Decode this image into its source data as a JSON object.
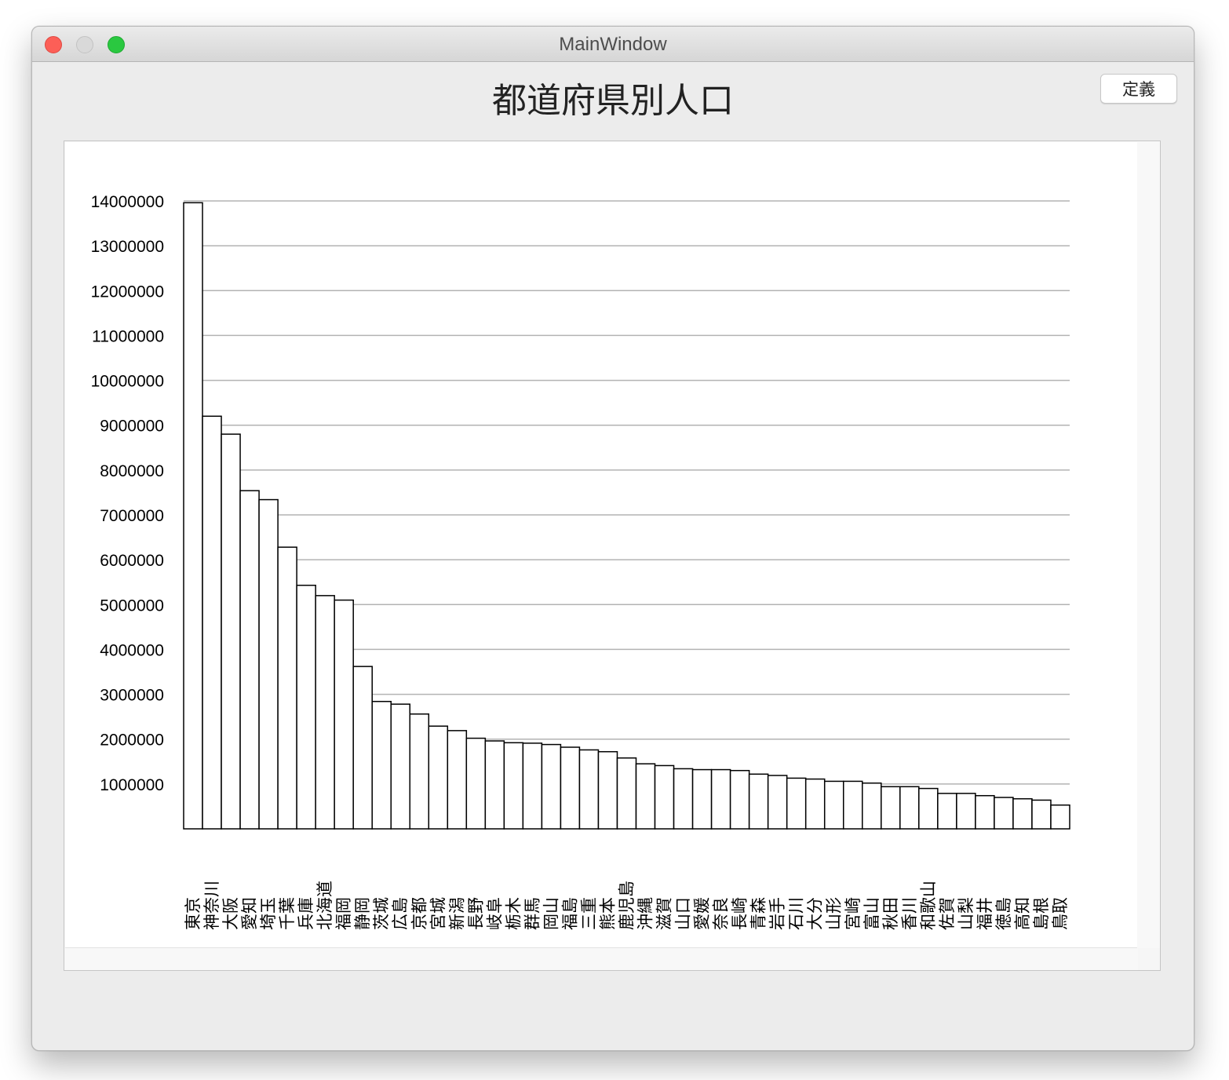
{
  "window": {
    "title": "MainWindow"
  },
  "toolbar": {
    "define_label": "定義"
  },
  "chart_data": {
    "type": "bar",
    "title": "都道府県別人口",
    "xlabel": "",
    "ylabel": "",
    "ylim": [
      0,
      14000000
    ],
    "yticks": [
      1000000,
      2000000,
      3000000,
      4000000,
      5000000,
      6000000,
      7000000,
      8000000,
      9000000,
      10000000,
      11000000,
      12000000,
      13000000,
      14000000
    ],
    "grid": true,
    "categories": [
      "東京",
      "神奈川",
      "大阪",
      "愛知",
      "埼玉",
      "千葉",
      "兵庫",
      "北海道",
      "福岡",
      "静岡",
      "茨城",
      "広島",
      "京都",
      "宮城",
      "新潟",
      "長野",
      "岐阜",
      "栃木",
      "群馬",
      "岡山",
      "福島",
      "三重",
      "熊本",
      "鹿児島",
      "沖縄",
      "滋賀",
      "山口",
      "愛媛",
      "奈良",
      "長崎",
      "青森",
      "岩手",
      "石川",
      "大分",
      "山形",
      "宮崎",
      "富山",
      "秋田",
      "香川",
      "和歌山",
      "佐賀",
      "山梨",
      "福井",
      "徳島",
      "高知",
      "島根",
      "鳥取"
    ],
    "values": [
      13960000,
      9200000,
      8800000,
      7540000,
      7340000,
      6280000,
      5430000,
      5200000,
      5100000,
      3620000,
      2840000,
      2780000,
      2560000,
      2290000,
      2190000,
      2020000,
      1960000,
      1920000,
      1910000,
      1880000,
      1820000,
      1760000,
      1720000,
      1580000,
      1450000,
      1410000,
      1340000,
      1320000,
      1320000,
      1300000,
      1220000,
      1190000,
      1130000,
      1110000,
      1060000,
      1060000,
      1020000,
      940000,
      940000,
      900000,
      790000,
      790000,
      740000,
      700000,
      670000,
      640000,
      530000
    ]
  }
}
